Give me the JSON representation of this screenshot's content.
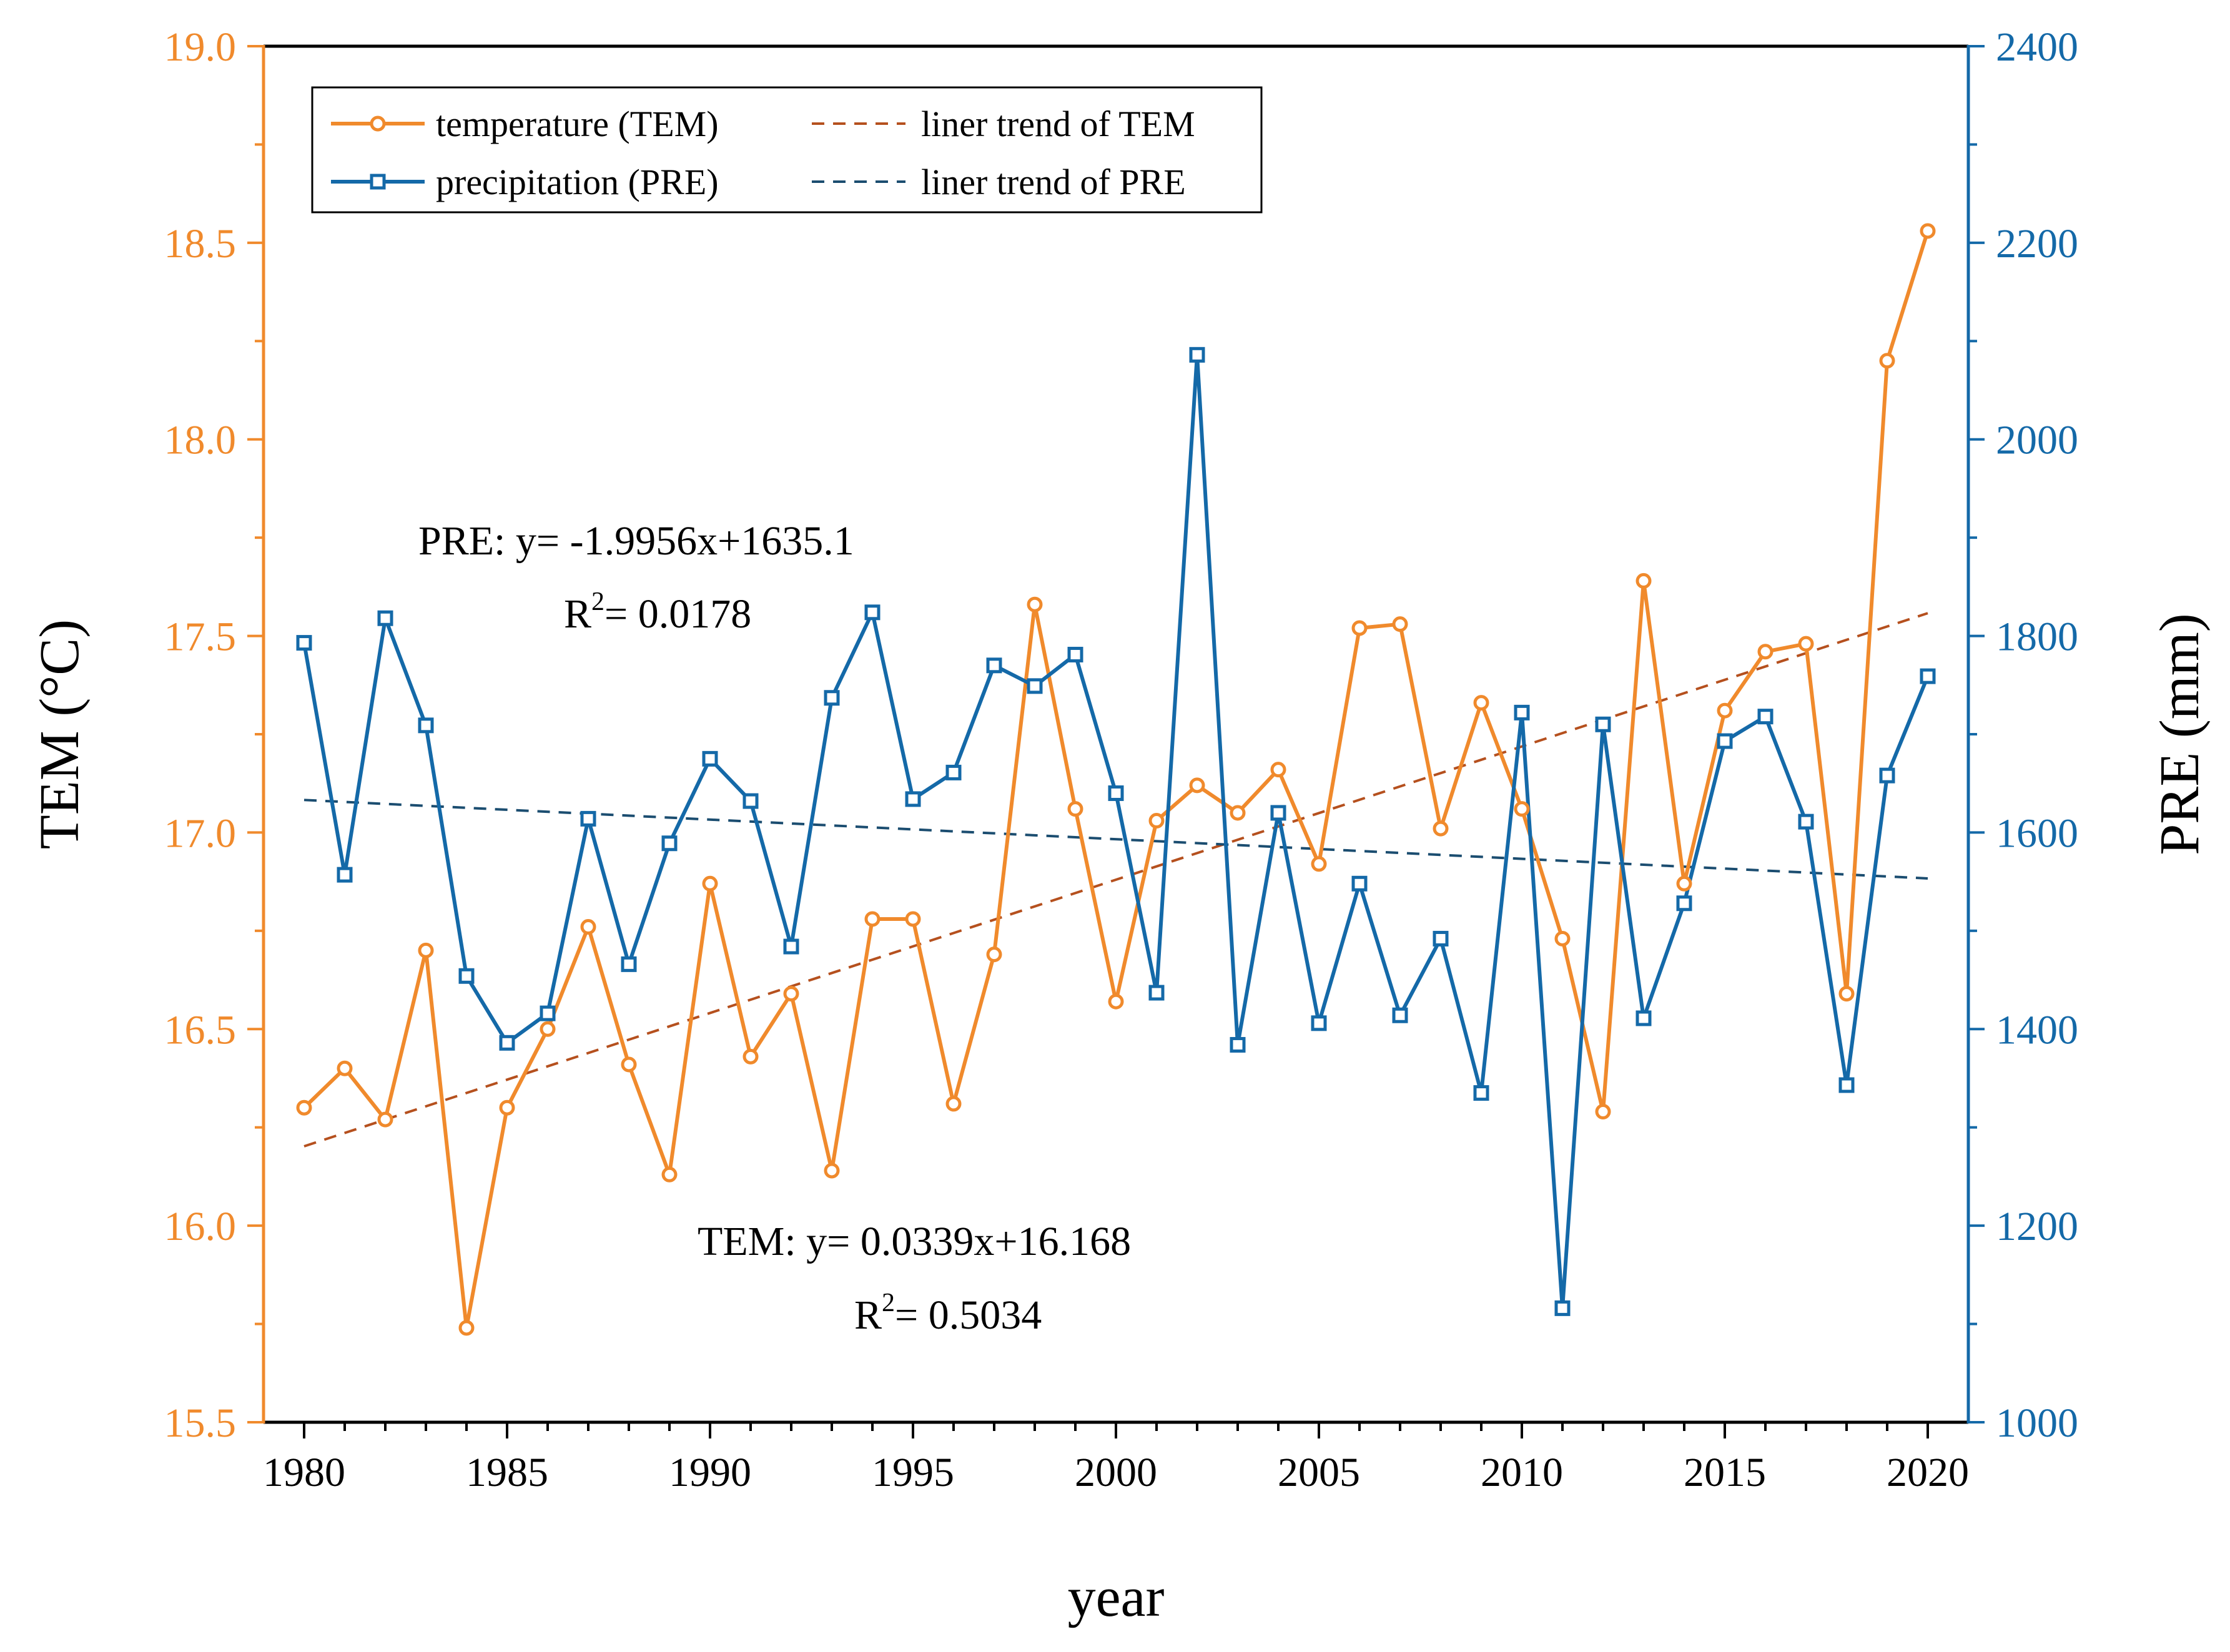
{
  "colors": {
    "tem": "#F08A2C",
    "pre": "#1469A8",
    "tem_trend": "#B5501E",
    "pre_trend": "#1B4D70",
    "axis": "#000000"
  },
  "chart_data": {
    "type": "line",
    "x": [
      1980,
      1981,
      1982,
      1983,
      1984,
      1985,
      1986,
      1987,
      1988,
      1989,
      1990,
      1991,
      1992,
      1993,
      1994,
      1995,
      1996,
      1997,
      1998,
      1999,
      2000,
      2001,
      2002,
      2003,
      2004,
      2005,
      2006,
      2007,
      2008,
      2009,
      2010,
      2011,
      2012,
      2013,
      2014,
      2015,
      2016,
      2017,
      2018,
      2019,
      2020
    ],
    "xlabel": "year",
    "xlim": [
      1979,
      2021
    ],
    "xticks": [
      "1980",
      "1985",
      "1990",
      "1995",
      "2000",
      "2005",
      "2010",
      "2015",
      "2020"
    ],
    "ylabel_left": "TEM (°C)",
    "ylim_left": [
      15.5,
      19.0
    ],
    "yticks_left": [
      "15.5",
      "16.0",
      "16.5",
      "17.0",
      "17.5",
      "18.0",
      "18.5",
      "19.0"
    ],
    "ylabel_right": "PRE (mm)",
    "ylim_right": [
      1000,
      2400
    ],
    "yticks_right": [
      "1000",
      "1200",
      "1400",
      "1600",
      "1800",
      "2000",
      "2200",
      "2400"
    ],
    "series": [
      {
        "name": "temperature (TEM)",
        "axis": "left",
        "marker": "circle",
        "values": [
          16.3,
          16.4,
          16.27,
          16.7,
          15.74,
          16.3,
          16.5,
          16.76,
          16.41,
          16.13,
          16.87,
          16.43,
          16.59,
          16.14,
          16.78,
          16.78,
          16.31,
          16.69,
          17.58,
          17.06,
          16.57,
          17.03,
          17.12,
          17.05,
          17.16,
          16.92,
          17.52,
          17.53,
          17.01,
          17.33,
          17.06,
          16.73,
          16.29,
          17.64,
          16.87,
          17.31,
          17.46,
          17.48,
          16.59,
          18.2,
          18.53
        ]
      },
      {
        "name": "precipitation (PRE)",
        "axis": "right",
        "marker": "square",
        "values": [
          1793,
          1557,
          1818,
          1709,
          1454,
          1386,
          1416,
          1614,
          1466,
          1589,
          1675,
          1632,
          1484,
          1737,
          1824,
          1634,
          1661,
          1770,
          1749,
          1781,
          1640,
          1437,
          2086,
          1384,
          1620,
          1406,
          1548,
          1414,
          1492,
          1335,
          1722,
          1116,
          1710,
          1411,
          1528,
          1693,
          1718,
          1611,
          1343,
          1658,
          1759
        ]
      },
      {
        "name": "liner trend of TEM",
        "axis": "left",
        "style": "dashed",
        "trend": {
          "slope": 0.0339,
          "intercept": 16.168
        }
      },
      {
        "name": "liner trend of PRE",
        "axis": "right",
        "style": "dashed",
        "trend": {
          "slope": -1.9956,
          "intercept": 1635.1
        }
      }
    ],
    "legend_position": "top-left",
    "annotations": {
      "pre_eq": "PRE:  y= -1.9956x+1635.1",
      "pre_r2_label": "R",
      "pre_r2_sup": "2",
      "pre_r2_value": "= 0.0178",
      "tem_eq": "TEM:  y= 0.0339x+16.168",
      "tem_r2_label": "R",
      "tem_r2_sup": "2",
      "tem_r2_value": "= 0.5034"
    }
  }
}
